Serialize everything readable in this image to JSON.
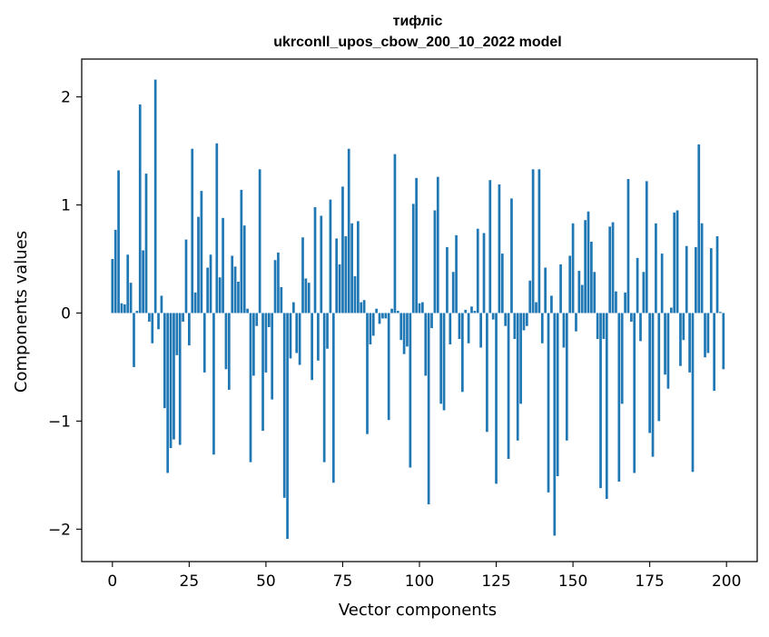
{
  "chart_data": {
    "type": "bar",
    "title_line1": "тифліс",
    "title_line2": "ukrconll_upos_cbow_200_10_2022 model",
    "xlabel": "Vector components",
    "ylabel": "Components values",
    "xlim": [
      -10,
      210
    ],
    "ylim": [
      -2.3,
      2.35
    ],
    "xticks": [
      0,
      25,
      50,
      75,
      100,
      125,
      150,
      175,
      200
    ],
    "xtick_labels": [
      "0",
      "25",
      "50",
      "75",
      "100",
      "125",
      "150",
      "175",
      "200"
    ],
    "yticks": [
      -2,
      -1,
      0,
      1,
      2
    ],
    "ytick_labels": [
      "−2",
      "−1",
      "0",
      "1",
      "2"
    ],
    "bar_color": "#1f77b4",
    "grid": false,
    "x": [
      0,
      1,
      2,
      3,
      4,
      5,
      6,
      7,
      8,
      9,
      10,
      11,
      12,
      13,
      14,
      15,
      16,
      17,
      18,
      19,
      20,
      21,
      22,
      23,
      24,
      25,
      26,
      27,
      28,
      29,
      30,
      31,
      32,
      33,
      34,
      35,
      36,
      37,
      38,
      39,
      40,
      41,
      42,
      43,
      44,
      45,
      46,
      47,
      48,
      49,
      50,
      51,
      52,
      53,
      54,
      55,
      56,
      57,
      58,
      59,
      60,
      61,
      62,
      63,
      64,
      65,
      66,
      67,
      68,
      69,
      70,
      71,
      72,
      73,
      74,
      75,
      76,
      77,
      78,
      79,
      80,
      81,
      82,
      83,
      84,
      85,
      86,
      87,
      88,
      89,
      90,
      91,
      92,
      93,
      94,
      95,
      96,
      97,
      98,
      99,
      100,
      101,
      102,
      103,
      104,
      105,
      106,
      107,
      108,
      109,
      110,
      111,
      112,
      113,
      114,
      115,
      116,
      117,
      118,
      119,
      120,
      121,
      122,
      123,
      124,
      125,
      126,
      127,
      128,
      129,
      130,
      131,
      132,
      133,
      134,
      135,
      136,
      137,
      138,
      139,
      140,
      141,
      142,
      143,
      144,
      145,
      146,
      147,
      148,
      149,
      150,
      151,
      152,
      153,
      154,
      155,
      156,
      157,
      158,
      159,
      160,
      161,
      162,
      163,
      164,
      165,
      166,
      167,
      168,
      169,
      170,
      171,
      172,
      173,
      174,
      175,
      176,
      177,
      178,
      179,
      180,
      181,
      182,
      183,
      184,
      185,
      186,
      187,
      188,
      189,
      190,
      191,
      192,
      193,
      194,
      195,
      196,
      197,
      198,
      199
    ],
    "values": [
      0.5,
      0.77,
      1.32,
      0.09,
      0.08,
      0.54,
      0.28,
      -0.5,
      0.02,
      1.93,
      0.58,
      1.29,
      -0.08,
      -0.28,
      2.16,
      -0.15,
      0.16,
      -0.88,
      -1.48,
      -1.25,
      -1.17,
      -0.39,
      -1.22,
      -0.08,
      0.68,
      -0.3,
      1.52,
      0.19,
      0.89,
      1.13,
      -0.55,
      0.42,
      0.54,
      -1.31,
      1.57,
      0.33,
      0.88,
      -0.52,
      -0.71,
      0.53,
      0.43,
      0.29,
      1.14,
      0.81,
      0.04,
      -1.38,
      -0.58,
      -0.12,
      1.33,
      -1.09,
      -0.55,
      -0.13,
      -0.8,
      0.49,
      0.56,
      0.24,
      -1.71,
      -2.09,
      -0.42,
      0.1,
      -0.37,
      -0.48,
      0.7,
      0.32,
      0.28,
      -0.62,
      0.98,
      -0.44,
      0.9,
      -1.38,
      -0.33,
      1.05,
      -1.57,
      0.69,
      0.45,
      1.17,
      0.71,
      1.52,
      0.83,
      0.34,
      0.85,
      0.1,
      0.12,
      -1.12,
      -0.29,
      -0.21,
      0.04,
      -0.1,
      -0.05,
      -0.05,
      -0.99,
      0.04,
      1.47,
      0.02,
      -0.25,
      -0.38,
      -0.31,
      -1.43,
      1.01,
      1.25,
      0.09,
      0.1,
      -0.58,
      -1.77,
      -0.14,
      0.95,
      1.26,
      -0.84,
      -0.9,
      0.61,
      -0.29,
      0.38,
      0.72,
      -0.24,
      -0.73,
      0.03,
      -0.28,
      0.06,
      0.02,
      0.78,
      -0.32,
      0.74,
      -1.1,
      1.23,
      -0.06,
      -1.58,
      1.19,
      0.55,
      -0.12,
      -1.35,
      1.06,
      -0.24,
      -1.18,
      -0.84,
      -0.16,
      -0.12,
      0.3,
      1.33,
      0.1,
      1.33,
      -0.28,
      0.42,
      -1.66,
      0.16,
      -2.06,
      -1.51,
      0.45,
      -0.32,
      -1.18,
      0.53,
      0.83,
      -0.17,
      0.39,
      0.26,
      0.86,
      0.94,
      0.66,
      0.38,
      -0.24,
      -1.62,
      -0.24,
      -1.72,
      0.8,
      0.84,
      0.2,
      -1.56,
      -0.84,
      0.19,
      1.24,
      -0.08,
      -1.48,
      0.51,
      -0.26,
      0.38,
      1.22,
      -1.11,
      -1.33,
      0.83,
      -1.0,
      0.55,
      -0.57,
      -0.7,
      0.05,
      0.93,
      0.95,
      -0.49,
      -0.25,
      0.62,
      -0.55,
      -1.47,
      0.61,
      1.56,
      0.83,
      -0.41,
      -0.37,
      0.6,
      -0.72,
      0.71,
      0.01,
      -0.52
    ]
  }
}
